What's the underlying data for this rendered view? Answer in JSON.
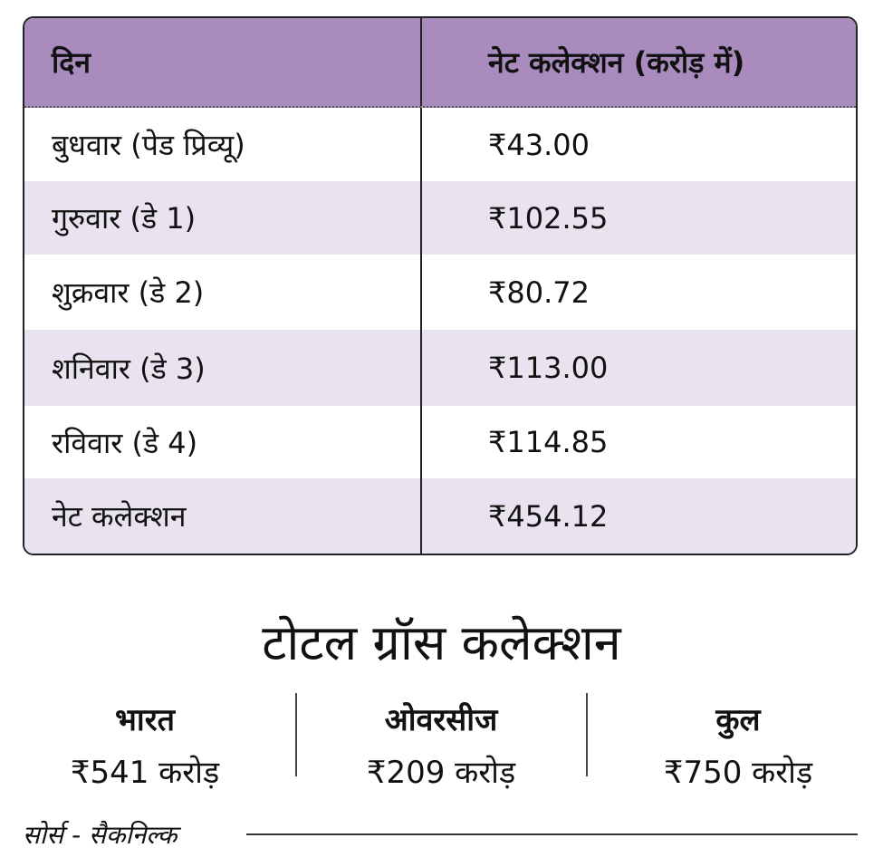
{
  "table": {
    "header": [
      "दिन",
      "नेट कलेक्शन (करोड़ में)"
    ],
    "rows": [
      [
        "बुधवार (पेड प्रिव्यू)",
        "₹43.00"
      ],
      [
        "गुरुवार (डे 1)",
        "₹102.55"
      ],
      [
        "शुक्रवार (डे 2)",
        "₹80.72"
      ],
      [
        "शनिवार (डे 3)",
        "₹113.00"
      ],
      [
        "रविवार (डे 4)",
        "₹114.85"
      ],
      [
        "नेट कलेक्शन",
        "₹454.12"
      ]
    ]
  },
  "gross": {
    "title": "टोटल ग्रॉस कलेक्शन",
    "items": [
      {
        "label": "भारत",
        "value": "₹541 करोड़"
      },
      {
        "label": "ओवरसीज",
        "value": "₹209 करोड़"
      },
      {
        "label": "कुल",
        "value": "₹750 करोड़"
      }
    ]
  },
  "source": "सोर्स - सैकनिल्क"
}
